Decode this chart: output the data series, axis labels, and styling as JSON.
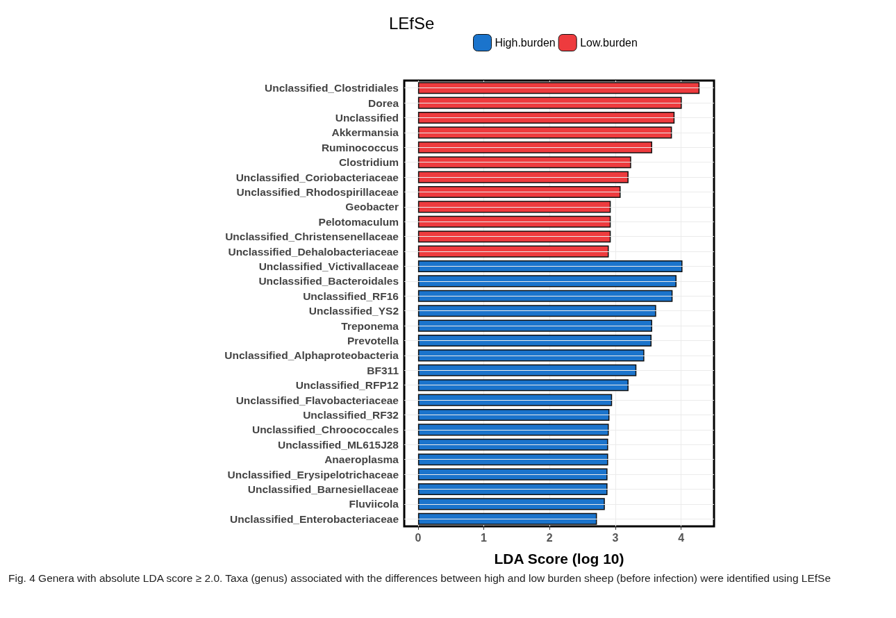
{
  "chart_data": {
    "type": "bar",
    "orientation": "horizontal",
    "title": "LEfSe",
    "xlabel": "LDA Score (log 10)",
    "categories": [
      "Unclassified_Clostridiales",
      "Dorea",
      "Unclassified",
      "Akkermansia",
      "Ruminococcus",
      "Clostridium",
      "Unclassified_Coriobacteriaceae",
      "Unclassified_Rhodospirillaceae",
      "Geobacter",
      "Pelotomaculum",
      "Unclassified_Christensenellaceae",
      "Unclassified_Dehalobacteriaceae",
      "Unclassified_Victivallaceae",
      "Unclassified_Bacteroidales",
      "Unclassified_RF16",
      "Unclassified_YS2",
      "Treponema",
      "Prevotella",
      "Unclassified_Alphaproteobacteria",
      "BF311",
      "Unclassified_RFP12",
      "Unclassified_Flavobacteriaceae",
      "Unclassified_RF32",
      "Unclassified_Chroococcales",
      "Unclassified_ML615J28",
      "Anaeroplasma",
      "Unclassified_Erysipelotrichaceae",
      "Unclassified_Barnesiellaceae",
      "Fluviicola",
      "Unclassified_Enterobacteriaceae"
    ],
    "series": [
      {
        "name": "High.burden",
        "color": "#1b74cc",
        "values": [
          null,
          null,
          null,
          null,
          null,
          null,
          null,
          null,
          null,
          null,
          null,
          null,
          4.02,
          3.93,
          3.87,
          3.62,
          3.56,
          3.55,
          3.44,
          3.32,
          3.2,
          2.95,
          2.91,
          2.9,
          2.89,
          2.89,
          2.88,
          2.88,
          2.84,
          2.72
        ]
      },
      {
        "name": "Low.burden",
        "color": "#ee3b3e",
        "values": [
          4.28,
          4.01,
          3.9,
          3.86,
          3.56,
          3.24,
          3.2,
          3.08,
          2.93,
          2.93,
          2.93,
          2.9,
          null,
          null,
          null,
          null,
          null,
          null,
          null,
          null,
          null,
          null,
          null,
          null,
          null,
          null,
          null,
          null,
          null,
          null
        ]
      }
    ],
    "xlim": [
      -0.21,
      4.5
    ],
    "xticks": [
      0,
      1,
      2,
      3,
      4
    ],
    "grid": true,
    "legend": "top",
    "annotations": [
      "Fig. 4 Genera with absolute LDA score ≥ 2.0. Taxa (genus) associated with the differences between high and low burden sheep (before infection) were identified using LEfSe"
    ]
  }
}
